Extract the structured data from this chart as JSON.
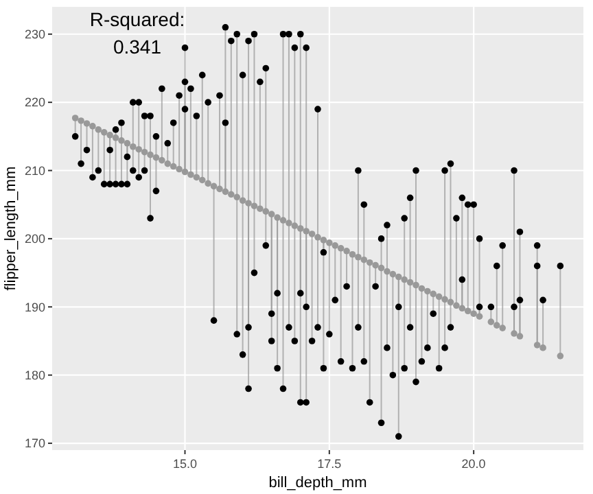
{
  "chart_data": {
    "type": "scatter",
    "xlabel": "bill_depth_mm",
    "ylabel": "flipper_length_mm",
    "annotations": [
      "R-squared:",
      "0.341"
    ],
    "xlim": [
      12.7,
      21.9
    ],
    "xticks": [
      {
        "value": 15,
        "label": "15.0"
      },
      {
        "value": 17.5,
        "label": "17.5"
      },
      {
        "value": 20,
        "label": "20.0"
      }
    ],
    "ylim": [
      169,
      234
    ],
    "yticks": [
      170,
      180,
      190,
      200,
      210,
      220,
      230
    ],
    "grid": true,
    "marker": "circle",
    "series": [
      {
        "color": "#999999",
        "x": [
          13.1,
          13.2,
          13.3,
          13.4,
          13.5,
          13.6,
          13.7,
          13.8,
          13.9,
          14.0,
          14.1,
          14.2,
          14.3,
          14.4,
          14.5,
          14.6,
          14.7,
          14.8,
          14.9,
          15.0,
          15.1,
          15.2,
          15.3,
          15.4,
          15.5,
          15.6,
          15.7,
          15.8,
          15.9,
          16.0,
          16.1,
          16.2,
          16.3,
          16.4,
          16.5,
          16.6,
          16.7,
          16.8,
          16.9,
          17.0,
          17.1,
          17.2,
          17.3,
          17.4,
          17.5,
          17.6,
          17.7,
          17.8,
          17.9,
          18.0,
          18.1,
          18.2,
          18.3,
          18.4,
          18.5,
          18.6,
          18.7,
          18.8,
          18.9,
          19.0,
          19.1,
          19.2,
          19.3,
          19.4,
          19.5,
          19.6,
          19.7,
          19.8,
          19.9,
          20.0,
          20.1,
          20.3,
          20.4,
          20.5,
          20.7,
          20.8,
          21.1,
          21.2,
          21.5
        ],
        "values": [
          217.7,
          217.3,
          216.9,
          216.5,
          216.0,
          215.6,
          215.2,
          214.8,
          214.4,
          214.0,
          213.5,
          213.1,
          212.7,
          212.3,
          211.9,
          211.5,
          211.0,
          210.6,
          210.2,
          209.8,
          209.4,
          209.0,
          208.6,
          208.1,
          207.7,
          207.3,
          206.9,
          206.5,
          206.1,
          205.6,
          205.2,
          204.8,
          204.4,
          204.0,
          203.6,
          203.1,
          202.7,
          202.3,
          201.9,
          201.5,
          201.1,
          200.7,
          200.2,
          199.8,
          199.4,
          199.0,
          198.6,
          198.2,
          197.7,
          197.3,
          196.9,
          196.5,
          196.1,
          195.7,
          195.2,
          194.8,
          194.4,
          194.0,
          193.6,
          193.2,
          192.7,
          192.3,
          191.9,
          191.5,
          191.1,
          190.7,
          190.2,
          189.8,
          189.4,
          189.0,
          188.6,
          187.8,
          187.3,
          186.9,
          186.1,
          185.7,
          184.4,
          184.0,
          182.8
        ]
      },
      {
        "color": "#000000",
        "x": [
          13.1,
          13.2,
          13.3,
          13.4,
          13.5,
          13.6,
          13.7,
          13.7,
          13.8,
          13.8,
          13.9,
          13.9,
          14.0,
          14.0,
          14.1,
          14.1,
          14.2,
          14.2,
          14.3,
          14.3,
          14.4,
          14.4,
          14.5,
          14.5,
          14.6,
          14.7,
          14.8,
          14.9,
          15.0,
          15.0,
          15.0,
          15.1,
          15.2,
          15.3,
          15.4,
          15.5,
          15.6,
          15.7,
          15.7,
          15.8,
          15.9,
          15.9,
          16.0,
          16.0,
          16.1,
          16.1,
          16.1,
          16.2,
          16.2,
          16.3,
          16.4,
          16.4,
          16.5,
          16.5,
          16.6,
          16.6,
          16.7,
          16.7,
          16.8,
          16.8,
          16.9,
          16.9,
          17.0,
          17.0,
          17.0,
          17.1,
          17.1,
          17.1,
          17.2,
          17.3,
          17.3,
          17.4,
          17.4,
          17.5,
          17.6,
          17.7,
          17.8,
          17.9,
          18.0,
          18.0,
          18.1,
          18.1,
          18.2,
          18.3,
          18.4,
          18.4,
          18.5,
          18.5,
          18.6,
          18.7,
          18.7,
          18.8,
          18.8,
          18.9,
          18.9,
          19.0,
          19.0,
          19.1,
          19.2,
          19.3,
          19.4,
          19.5,
          19.5,
          19.6,
          19.6,
          19.7,
          19.8,
          19.8,
          19.9,
          20.0,
          20.1,
          20.1,
          20.3,
          20.4,
          20.5,
          20.7,
          20.7,
          20.8,
          20.8,
          21.1,
          21.1,
          21.2,
          21.5
        ],
        "values": [
          215,
          211,
          213,
          209,
          210,
          208,
          208,
          213,
          208,
          216,
          208,
          217,
          208,
          212,
          220,
          210,
          220,
          209,
          218,
          210,
          218,
          203,
          215,
          207,
          222,
          214,
          217,
          221,
          228,
          223,
          219,
          222,
          218,
          224,
          220,
          188,
          221,
          231,
          217,
          229,
          230,
          186,
          183,
          224,
          229,
          178,
          187,
          230,
          195,
          223,
          225,
          199,
          189,
          185,
          192,
          181,
          230,
          178,
          230,
          187,
          228,
          185,
          230,
          176,
          192,
          228,
          190,
          176,
          185,
          219,
          187,
          198,
          181,
          186,
          191,
          182,
          193,
          181,
          210,
          187,
          205,
          182,
          176,
          193,
          173,
          200,
          184,
          202,
          180,
          171,
          190,
          203,
          181,
          206,
          187,
          210,
          179,
          182,
          184,
          189,
          181,
          210,
          184,
          211,
          187,
          203,
          206,
          194,
          205,
          205,
          200,
          190,
          190,
          196,
          199,
          210,
          190,
          201,
          191,
          199,
          196,
          191,
          196
        ],
        "errors": [
          [
            215,
            217.7
          ],
          [
            211,
            217.3
          ],
          [
            213,
            216.9
          ],
          [
            209,
            216.5
          ],
          [
            210,
            216
          ],
          [
            208,
            215.6
          ],
          [
            208,
            215.2
          ],
          [
            213,
            215.2
          ],
          [
            208,
            214.8
          ],
          [
            214.8,
            216
          ],
          [
            208,
            214.4
          ],
          [
            214.4,
            217
          ],
          [
            208,
            214
          ],
          [
            212,
            214
          ],
          [
            213.5,
            220
          ],
          [
            210,
            213.5
          ],
          [
            213.1,
            220
          ],
          [
            209,
            213.1
          ],
          [
            212.7,
            218
          ],
          [
            210,
            212.7
          ],
          [
            212.3,
            218
          ],
          [
            203,
            212.3
          ],
          [
            211.9,
            215
          ],
          [
            207,
            211.9
          ],
          [
            211.5,
            222
          ],
          [
            211,
            214
          ],
          [
            210.6,
            217
          ],
          [
            210.2,
            221
          ],
          [
            209.8,
            228
          ],
          [
            209.8,
            223
          ],
          [
            209.8,
            219
          ],
          [
            209.4,
            222
          ],
          [
            209,
            218
          ],
          [
            208.6,
            224
          ],
          [
            208.1,
            220
          ],
          [
            188,
            207.7
          ],
          [
            207.3,
            221
          ],
          [
            206.9,
            231
          ],
          [
            206.9,
            217
          ],
          [
            206.5,
            229
          ],
          [
            206.1,
            230
          ],
          [
            186,
            206.1
          ],
          [
            183,
            205.6
          ],
          [
            205.6,
            224
          ],
          [
            205.2,
            229
          ],
          [
            178,
            205.2
          ],
          [
            187,
            205.2
          ],
          [
            204.8,
            230
          ],
          [
            195,
            204.8
          ],
          [
            204.4,
            223
          ],
          [
            204,
            225
          ],
          [
            199,
            204
          ],
          [
            189,
            203.6
          ],
          [
            185,
            203.6
          ],
          [
            192,
            203.1
          ],
          [
            181,
            203.1
          ],
          [
            202.7,
            230
          ],
          [
            178,
            202.7
          ],
          [
            202.3,
            230
          ],
          [
            187,
            202.3
          ],
          [
            201.9,
            228
          ],
          [
            185,
            201.9
          ],
          [
            201.5,
            230
          ],
          [
            176,
            201.5
          ],
          [
            192,
            201.5
          ],
          [
            201.1,
            228
          ],
          [
            190,
            201.1
          ],
          [
            176,
            201.1
          ],
          [
            185,
            200.7
          ],
          [
            200.2,
            219
          ],
          [
            187,
            200.2
          ],
          [
            198,
            199.8
          ],
          [
            181,
            199.8
          ],
          [
            186,
            199.4
          ],
          [
            191,
            199
          ],
          [
            182,
            198.6
          ],
          [
            193,
            198.2
          ],
          [
            181,
            197.7
          ],
          [
            197.3,
            210
          ],
          [
            187,
            197.3
          ],
          [
            196.9,
            205
          ],
          [
            182,
            196.9
          ],
          [
            176,
            196.5
          ],
          [
            193,
            196.1
          ],
          [
            173,
            195.7
          ],
          [
            195.7,
            200
          ],
          [
            184,
            195.2
          ],
          [
            195.2,
            202
          ],
          [
            180,
            194.8
          ],
          [
            171,
            194.4
          ],
          [
            190,
            194.4
          ],
          [
            194,
            203
          ],
          [
            181,
            194
          ],
          [
            193.6,
            206
          ],
          [
            187,
            193.6
          ],
          [
            193.2,
            210
          ],
          [
            179,
            193.2
          ],
          [
            182,
            192.7
          ],
          [
            184,
            192.3
          ],
          [
            189,
            191.9
          ],
          [
            181,
            191.5
          ],
          [
            191.1,
            210
          ],
          [
            184,
            191.1
          ],
          [
            190.7,
            211
          ],
          [
            187,
            190.7
          ],
          [
            190.2,
            203
          ],
          [
            189.8,
            206
          ],
          [
            189.8,
            194
          ],
          [
            189.4,
            205
          ],
          [
            189,
            205
          ],
          [
            188.6,
            200
          ],
          [
            188.6,
            190
          ],
          [
            187.8,
            190
          ],
          [
            187.3,
            196
          ],
          [
            186.9,
            199
          ],
          [
            186.1,
            210
          ],
          [
            186.1,
            190
          ],
          [
            185.7,
            201
          ],
          [
            185.7,
            191
          ],
          [
            184.4,
            199
          ],
          [
            184.4,
            196
          ],
          [
            184,
            191
          ],
          [
            182.8,
            196
          ]
        ]
      }
    ]
  }
}
